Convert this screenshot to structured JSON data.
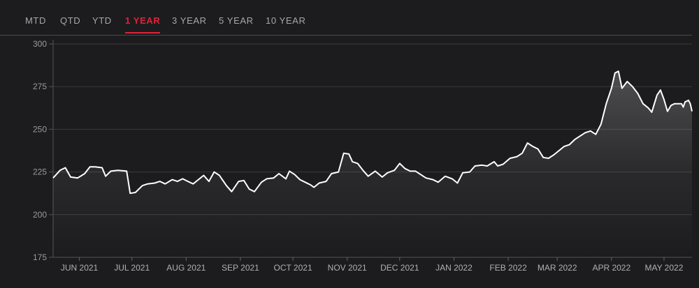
{
  "tabs": [
    {
      "label": "MTD",
      "active": false
    },
    {
      "label": "QTD",
      "active": false
    },
    {
      "label": "YTD",
      "active": false
    },
    {
      "label": "1 YEAR",
      "active": true
    },
    {
      "label": "3 YEAR",
      "active": false
    },
    {
      "label": "5 YEAR",
      "active": false
    },
    {
      "label": "10 YEAR",
      "active": false
    }
  ],
  "colors": {
    "accent": "#e0223a",
    "line": "#ffffff",
    "grid": "#3a3a3a"
  },
  "chart_data": {
    "type": "area",
    "title": "",
    "xlabel": "",
    "ylabel": "",
    "ylim": [
      175,
      300
    ],
    "yticks": [
      175,
      200,
      225,
      250,
      275,
      300
    ],
    "xlim": [
      "2021-05-17",
      "2022-05-17"
    ],
    "xticks": [
      {
        "date": "2021-06-01",
        "label": "JUN 2021"
      },
      {
        "date": "2021-07-01",
        "label": "JUL 2021"
      },
      {
        "date": "2021-08-01",
        "label": "AUG 2021"
      },
      {
        "date": "2021-09-01",
        "label": "SEP 2021"
      },
      {
        "date": "2021-10-01",
        "label": "OCT 2021"
      },
      {
        "date": "2021-11-01",
        "label": "NOV 2021"
      },
      {
        "date": "2021-12-01",
        "label": "DEC 2021"
      },
      {
        "date": "2022-01-01",
        "label": "JAN 2022"
      },
      {
        "date": "2022-02-01",
        "label": "FEB 2022"
      },
      {
        "date": "2022-03-01",
        "label": "MAR 2022"
      },
      {
        "date": "2022-04-01",
        "label": "APR 2022"
      },
      {
        "date": "2022-05-01",
        "label": "MAY 2022"
      }
    ],
    "grid": true,
    "series": [
      {
        "points": [
          [
            "2021-05-17",
            221.5
          ],
          [
            "2021-05-21",
            226
          ],
          [
            "2021-05-24",
            227.5
          ],
          [
            "2021-05-27",
            222
          ],
          [
            "2021-05-31",
            221.5
          ],
          [
            "2021-06-04",
            224
          ],
          [
            "2021-06-07",
            228
          ],
          [
            "2021-06-10",
            228
          ],
          [
            "2021-06-14",
            227.5
          ],
          [
            "2021-06-16",
            222.5
          ],
          [
            "2021-06-19",
            225.5
          ],
          [
            "2021-06-23",
            226
          ],
          [
            "2021-06-28",
            225.5
          ],
          [
            "2021-06-30",
            212.5
          ],
          [
            "2021-07-03",
            213
          ],
          [
            "2021-07-07",
            217
          ],
          [
            "2021-07-10",
            218
          ],
          [
            "2021-07-14",
            218.5
          ],
          [
            "2021-07-17",
            219.5
          ],
          [
            "2021-07-20",
            218
          ],
          [
            "2021-07-24",
            220.5
          ],
          [
            "2021-07-27",
            219.5
          ],
          [
            "2021-07-30",
            221
          ],
          [
            "2021-08-02",
            219.5
          ],
          [
            "2021-08-05",
            218
          ],
          [
            "2021-08-08",
            220.5
          ],
          [
            "2021-08-11",
            223
          ],
          [
            "2021-08-14",
            219.5
          ],
          [
            "2021-08-17",
            225
          ],
          [
            "2021-08-20",
            223
          ],
          [
            "2021-08-24",
            217
          ],
          [
            "2021-08-27",
            213.5
          ],
          [
            "2021-08-31",
            219.5
          ],
          [
            "2021-09-03",
            220
          ],
          [
            "2021-09-06",
            215
          ],
          [
            "2021-09-09",
            213.5
          ],
          [
            "2021-09-13",
            219
          ],
          [
            "2021-09-16",
            221
          ],
          [
            "2021-09-20",
            221.5
          ],
          [
            "2021-09-23",
            224
          ],
          [
            "2021-09-27",
            221
          ],
          [
            "2021-09-29",
            225.5
          ],
          [
            "2021-10-02",
            223.5
          ],
          [
            "2021-10-05",
            220.5
          ],
          [
            "2021-10-08",
            219
          ],
          [
            "2021-10-11",
            217.5
          ],
          [
            "2021-10-13",
            216
          ],
          [
            "2021-10-16",
            218.5
          ],
          [
            "2021-10-20",
            219.5
          ],
          [
            "2021-10-23",
            224
          ],
          [
            "2021-10-27",
            225
          ],
          [
            "2021-10-30",
            236
          ],
          [
            "2021-11-02",
            235.5
          ],
          [
            "2021-11-04",
            231
          ],
          [
            "2021-11-07",
            230
          ],
          [
            "2021-11-10",
            226
          ],
          [
            "2021-11-13",
            222.5
          ],
          [
            "2021-11-17",
            225.5
          ],
          [
            "2021-11-21",
            222
          ],
          [
            "2021-11-24",
            224.5
          ],
          [
            "2021-11-28",
            226
          ],
          [
            "2021-12-01",
            230
          ],
          [
            "2021-12-04",
            227
          ],
          [
            "2021-12-07",
            225.5
          ],
          [
            "2021-12-10",
            225.5
          ],
          [
            "2021-12-13",
            223.5
          ],
          [
            "2021-12-16",
            221.5
          ],
          [
            "2021-12-20",
            220.5
          ],
          [
            "2021-12-23",
            219
          ],
          [
            "2021-12-27",
            222.5
          ],
          [
            "2021-12-31",
            221
          ],
          [
            "2022-01-03",
            218.5
          ],
          [
            "2022-01-06",
            224.5
          ],
          [
            "2022-01-10",
            225
          ],
          [
            "2022-01-13",
            228.5
          ],
          [
            "2022-01-17",
            229
          ],
          [
            "2022-01-20",
            228.5
          ],
          [
            "2022-01-24",
            231
          ],
          [
            "2022-01-26",
            228.5
          ],
          [
            "2022-01-29",
            229.5
          ],
          [
            "2022-02-02",
            233
          ],
          [
            "2022-02-06",
            234
          ],
          [
            "2022-02-09",
            236
          ],
          [
            "2022-02-12",
            242
          ],
          [
            "2022-02-15",
            240
          ],
          [
            "2022-02-18",
            238.5
          ],
          [
            "2022-02-21",
            233.5
          ],
          [
            "2022-02-24",
            233
          ],
          [
            "2022-02-27",
            235
          ],
          [
            "2022-03-02",
            237.5
          ],
          [
            "2022-03-05",
            240
          ],
          [
            "2022-03-08",
            241
          ],
          [
            "2022-03-11",
            244
          ],
          [
            "2022-03-14",
            246
          ],
          [
            "2022-03-17",
            248
          ],
          [
            "2022-03-20",
            249
          ],
          [
            "2022-03-23",
            247
          ],
          [
            "2022-03-26",
            253
          ],
          [
            "2022-03-29",
            265
          ],
          [
            "2022-04-01",
            274
          ],
          [
            "2022-04-03",
            283
          ],
          [
            "2022-04-05",
            284
          ],
          [
            "2022-04-07",
            274
          ],
          [
            "2022-04-10",
            278
          ],
          [
            "2022-04-13",
            275
          ],
          [
            "2022-04-16",
            271
          ],
          [
            "2022-04-19",
            265
          ],
          [
            "2022-04-22",
            262.5
          ],
          [
            "2022-04-24",
            260
          ],
          [
            "2022-04-27",
            270
          ],
          [
            "2022-04-29",
            273
          ],
          [
            "2022-05-01",
            267.5
          ],
          [
            "2022-05-03",
            260.5
          ],
          [
            "2022-05-05",
            264
          ],
          [
            "2022-05-07",
            265
          ],
          [
            "2022-05-09",
            265
          ],
          [
            "2022-05-11",
            265
          ],
          [
            "2022-05-12",
            263
          ],
          [
            "2022-05-13",
            266
          ],
          [
            "2022-05-14",
            266.5
          ],
          [
            "2022-05-15",
            267
          ],
          [
            "2022-05-16",
            265
          ],
          [
            "2022-05-17",
            260.5
          ]
        ]
      }
    ]
  }
}
